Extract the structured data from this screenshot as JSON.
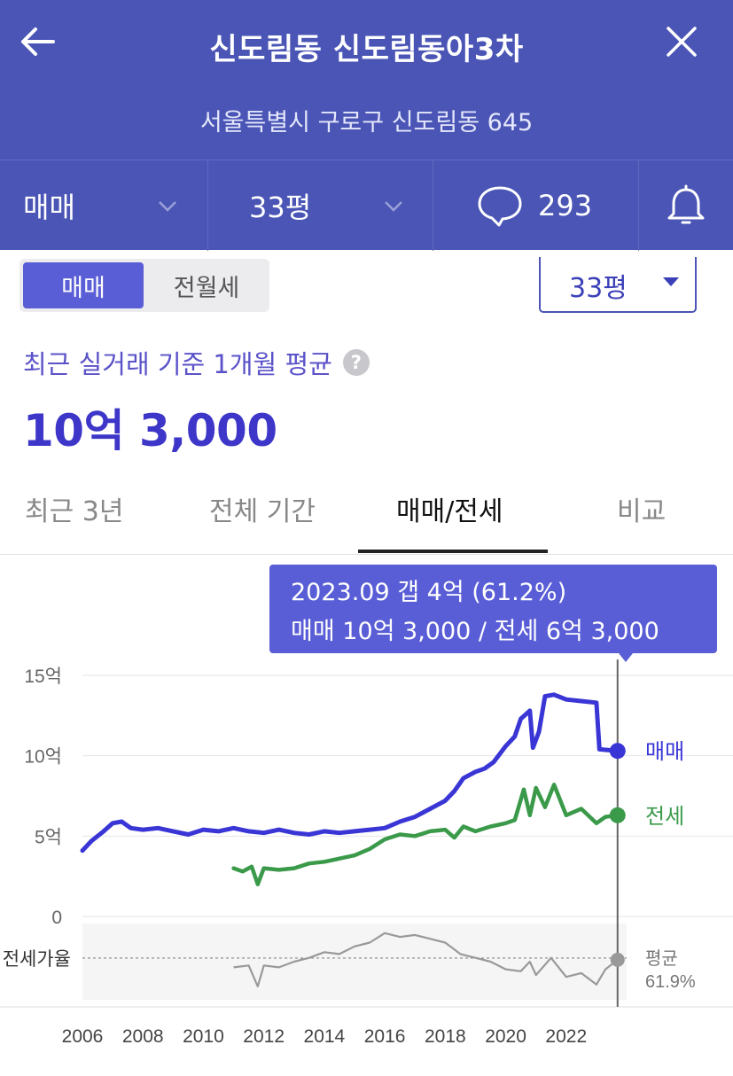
{
  "header": {
    "title": "신도림동 신도림동아3차",
    "address": "서울특별시 구로구 신도림동 645",
    "trade_filter": "매매",
    "area_filter": "33평",
    "comment_count": "293"
  },
  "toggle": {
    "active": "매매",
    "inactive": "전월세"
  },
  "area_select": "33평",
  "summary": {
    "label": "최근 실거래 기준 1개월 평균",
    "help": "?",
    "price": "10억 3,000"
  },
  "tabs": [
    {
      "label": "최근 3년",
      "active": false
    },
    {
      "label": "전체 기간",
      "active": false
    },
    {
      "label": "매매/전세",
      "active": true
    },
    {
      "label": "비교",
      "active": false
    }
  ],
  "tooltip": {
    "line1": "2023.09  갭 4억 (61.2%)",
    "line2": "매매 10억 3,000 / 전세 6억 3,000"
  },
  "colors": {
    "header": "#4a55b5",
    "accent": "#5a5ed6",
    "sale": "#3a36d6",
    "jeonse": "#3a9a4a",
    "ratio": "#999999"
  },
  "chart_data": {
    "type": "line",
    "x_ticks": [
      "2006",
      "2008",
      "2010",
      "2012",
      "2014",
      "2016",
      "2018",
      "2020",
      "2022"
    ],
    "y_ticks": [
      "0",
      "5억",
      "10억",
      "15억"
    ],
    "ylim": [
      0,
      15
    ],
    "xlim": [
      2006,
      2024
    ],
    "cursor_x": 2023.7,
    "series": [
      {
        "name": "매매",
        "color": "#3a36d6",
        "points": [
          [
            2006.0,
            4.1
          ],
          [
            2006.3,
            4.7
          ],
          [
            2006.7,
            5.3
          ],
          [
            2007.0,
            5.8
          ],
          [
            2007.3,
            5.9
          ],
          [
            2007.6,
            5.5
          ],
          [
            2008.0,
            5.4
          ],
          [
            2008.5,
            5.5
          ],
          [
            2009.0,
            5.3
          ],
          [
            2009.5,
            5.1
          ],
          [
            2010.0,
            5.4
          ],
          [
            2010.5,
            5.3
          ],
          [
            2011.0,
            5.5
          ],
          [
            2011.5,
            5.3
          ],
          [
            2012.0,
            5.2
          ],
          [
            2012.5,
            5.4
          ],
          [
            2013.0,
            5.2
          ],
          [
            2013.5,
            5.1
          ],
          [
            2014.0,
            5.3
          ],
          [
            2014.5,
            5.2
          ],
          [
            2015.0,
            5.3
          ],
          [
            2015.5,
            5.4
          ],
          [
            2016.0,
            5.5
          ],
          [
            2016.5,
            5.9
          ],
          [
            2017.0,
            6.2
          ],
          [
            2017.5,
            6.7
          ],
          [
            2018.0,
            7.2
          ],
          [
            2018.3,
            7.8
          ],
          [
            2018.6,
            8.6
          ],
          [
            2019.0,
            9.0
          ],
          [
            2019.3,
            9.2
          ],
          [
            2019.6,
            9.6
          ],
          [
            2020.0,
            10.6
          ],
          [
            2020.3,
            11.2
          ],
          [
            2020.5,
            12.3
          ],
          [
            2020.8,
            12.8
          ],
          [
            2020.9,
            10.5
          ],
          [
            2021.1,
            11.5
          ],
          [
            2021.3,
            13.7
          ],
          [
            2021.6,
            13.8
          ],
          [
            2022.0,
            13.5
          ],
          [
            2022.5,
            13.4
          ],
          [
            2023.0,
            13.3
          ],
          [
            2023.1,
            10.4
          ],
          [
            2023.7,
            10.3
          ]
        ]
      },
      {
        "name": "전세",
        "color": "#3a9a4a",
        "points": [
          [
            2011.0,
            3.0
          ],
          [
            2011.3,
            2.8
          ],
          [
            2011.6,
            3.1
          ],
          [
            2011.8,
            2.0
          ],
          [
            2012.0,
            3.0
          ],
          [
            2012.5,
            2.9
          ],
          [
            2013.0,
            3.0
          ],
          [
            2013.5,
            3.3
          ],
          [
            2014.0,
            3.4
          ],
          [
            2014.5,
            3.6
          ],
          [
            2015.0,
            3.8
          ],
          [
            2015.5,
            4.2
          ],
          [
            2016.0,
            4.8
          ],
          [
            2016.5,
            5.1
          ],
          [
            2017.0,
            5.0
          ],
          [
            2017.5,
            5.3
          ],
          [
            2018.0,
            5.4
          ],
          [
            2018.3,
            4.9
          ],
          [
            2018.6,
            5.6
          ],
          [
            2019.0,
            5.3
          ],
          [
            2019.5,
            5.6
          ],
          [
            2020.0,
            5.8
          ],
          [
            2020.3,
            6.0
          ],
          [
            2020.6,
            7.9
          ],
          [
            2020.8,
            6.3
          ],
          [
            2021.0,
            8.0
          ],
          [
            2021.3,
            6.8
          ],
          [
            2021.6,
            8.2
          ],
          [
            2022.0,
            6.3
          ],
          [
            2022.5,
            6.7
          ],
          [
            2023.0,
            5.8
          ],
          [
            2023.3,
            6.2
          ],
          [
            2023.7,
            6.3
          ]
        ]
      }
    ],
    "end_labels": {
      "sale": "매매",
      "jeonse": "전세"
    },
    "ratio": {
      "label": "전세가율",
      "avg_label": "평균",
      "avg_value": "61.9%",
      "avg": 61.9,
      "ylim": [
        40,
        80
      ],
      "points": [
        [
          2011.0,
          57
        ],
        [
          2011.5,
          58
        ],
        [
          2011.8,
          47
        ],
        [
          2012.0,
          58
        ],
        [
          2012.5,
          57
        ],
        [
          2013.0,
          60
        ],
        [
          2013.5,
          62
        ],
        [
          2014.0,
          65
        ],
        [
          2014.5,
          64
        ],
        [
          2015.0,
          68
        ],
        [
          2015.5,
          70
        ],
        [
          2016.0,
          75
        ],
        [
          2016.5,
          73
        ],
        [
          2017.0,
          74
        ],
        [
          2017.5,
          72
        ],
        [
          2018.0,
          70
        ],
        [
          2018.5,
          64
        ],
        [
          2019.0,
          62
        ],
        [
          2019.5,
          60
        ],
        [
          2020.0,
          56
        ],
        [
          2020.5,
          55
        ],
        [
          2020.8,
          60
        ],
        [
          2021.0,
          53
        ],
        [
          2021.5,
          62
        ],
        [
          2022.0,
          52
        ],
        [
          2022.5,
          54
        ],
        [
          2023.0,
          48
        ],
        [
          2023.3,
          56
        ],
        [
          2023.7,
          61
        ]
      ]
    }
  }
}
